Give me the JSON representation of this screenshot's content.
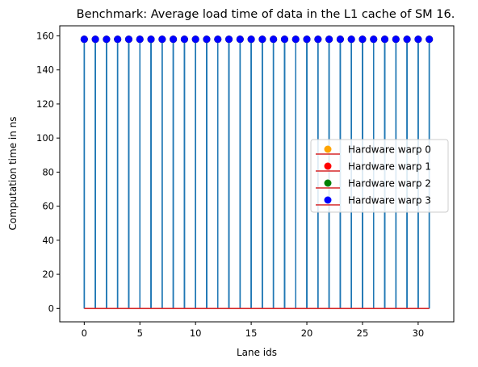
{
  "chart_data": {
    "type": "stem",
    "title": "Benchmark: Average load time of data in the L1 cache of SM 16.",
    "xlabel": "Lane ids",
    "ylabel": "Computation time in ns",
    "xlim": [
      -2.2,
      33.2
    ],
    "ylim": [
      -7.9,
      165.9
    ],
    "xticks": [
      0,
      5,
      10,
      15,
      20,
      25,
      30
    ],
    "yticks": [
      0,
      20,
      40,
      60,
      80,
      100,
      120,
      140,
      160
    ],
    "grid": false,
    "legend_position": "center-right",
    "stem_color": "#1f77b4",
    "baseline_color": "#d62728",
    "x": [
      0,
      1,
      2,
      3,
      4,
      5,
      6,
      7,
      8,
      9,
      10,
      11,
      12,
      13,
      14,
      15,
      16,
      17,
      18,
      19,
      20,
      21,
      22,
      23,
      24,
      25,
      26,
      27,
      28,
      29,
      30,
      31
    ],
    "series": [
      {
        "name": "Hardware warp 0",
        "marker_color": "#ffa500",
        "values": [
          158,
          158,
          158,
          158,
          158,
          158,
          158,
          158,
          158,
          158,
          158,
          158,
          158,
          158,
          158,
          158,
          158,
          158,
          158,
          158,
          158,
          158,
          158,
          158,
          158,
          158,
          158,
          158,
          158,
          158,
          158,
          158
        ]
      },
      {
        "name": "Hardware warp 1",
        "marker_color": "#ff0000",
        "values": [
          158,
          158,
          158,
          158,
          158,
          158,
          158,
          158,
          158,
          158,
          158,
          158,
          158,
          158,
          158,
          158,
          158,
          158,
          158,
          158,
          158,
          158,
          158,
          158,
          158,
          158,
          158,
          158,
          158,
          158,
          158,
          158
        ]
      },
      {
        "name": "Hardware warp 2",
        "marker_color": "#008000",
        "values": [
          158,
          158,
          158,
          158,
          158,
          158,
          158,
          158,
          158,
          158,
          158,
          158,
          158,
          158,
          158,
          158,
          158,
          158,
          158,
          158,
          158,
          158,
          158,
          158,
          158,
          158,
          158,
          158,
          158,
          158,
          158,
          158
        ]
      },
      {
        "name": "Hardware warp 3",
        "marker_color": "#0000ff",
        "values": [
          158,
          158,
          158,
          158,
          158,
          158,
          158,
          158,
          158,
          158,
          158,
          158,
          158,
          158,
          158,
          158,
          158,
          158,
          158,
          158,
          158,
          158,
          158,
          158,
          158,
          158,
          158,
          158,
          158,
          158,
          158,
          158
        ]
      }
    ]
  }
}
